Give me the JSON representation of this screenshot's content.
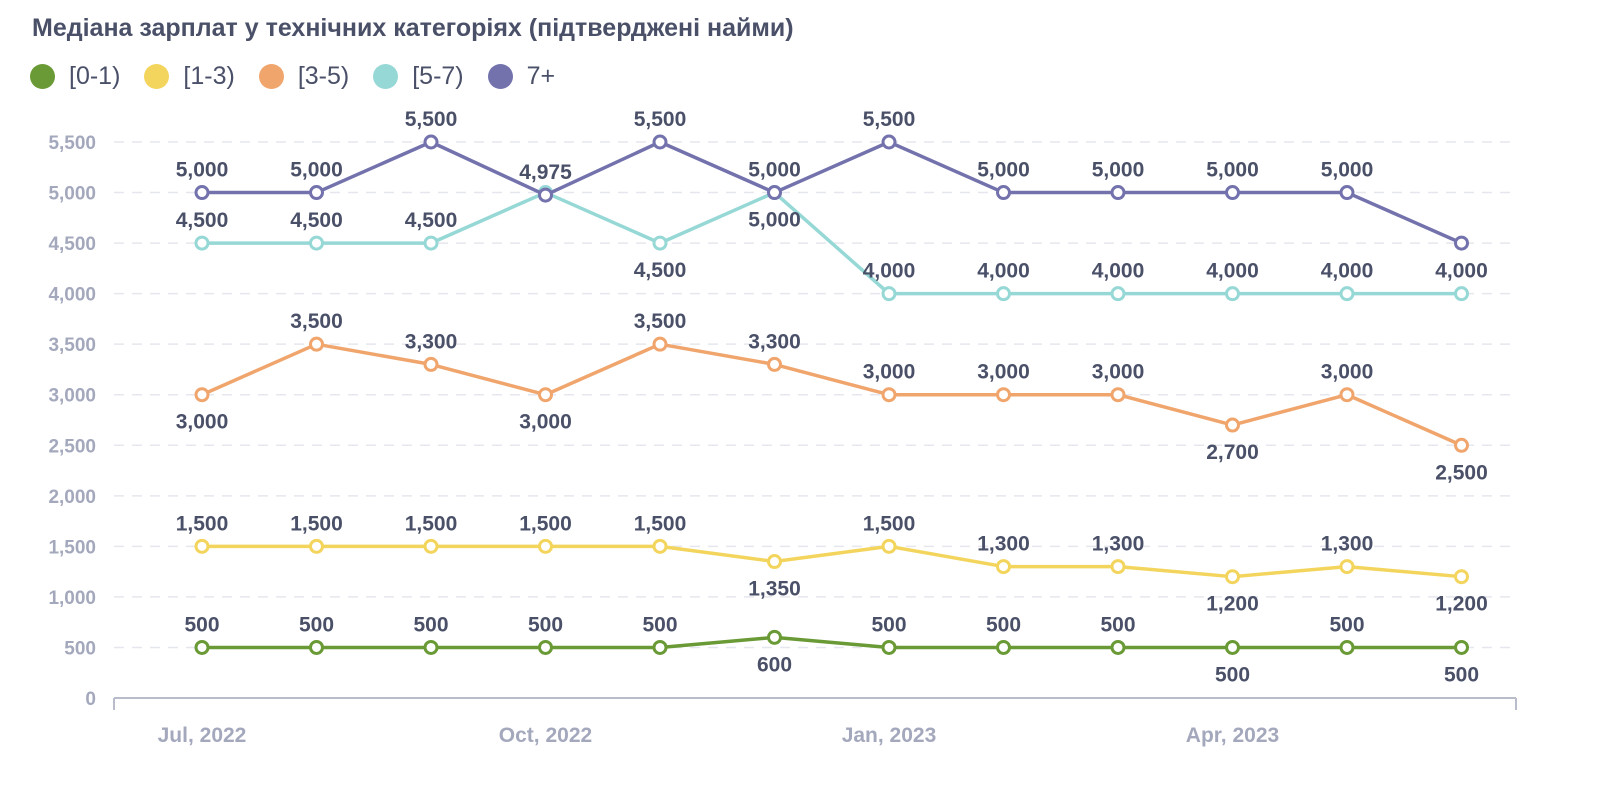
{
  "title": "Медіана зарплат у технічних категоріях (підтверджені найми)",
  "chart_data": {
    "type": "line",
    "title": "Медіана зарплат у технічних категоріях (підтверджені найми)",
    "xlabel": "",
    "ylabel": "",
    "ylim": [
      0,
      5500
    ],
    "y_ticks": [
      "0",
      "500",
      "1,000",
      "1,500",
      "2,000",
      "2,500",
      "3,000",
      "3,500",
      "4,000",
      "4,500",
      "5,000",
      "5,500"
    ],
    "x_tick_labels": [
      "Jul, 2022",
      "Oct, 2022",
      "Jan, 2023",
      "Apr, 2023"
    ],
    "x": [
      "2022-07",
      "2022-08",
      "2022-09",
      "2022-10",
      "2022-11",
      "2022-12",
      "2023-01",
      "2023-02",
      "2023-03",
      "2023-04",
      "2023-05",
      "2023-06"
    ],
    "grid": true,
    "legend_position": "top-left",
    "series": [
      {
        "name": "[0-1)",
        "color": "#6a9a35",
        "values": [
          500,
          500,
          500,
          500,
          500,
          600,
          500,
          500,
          500,
          500,
          500,
          500
        ],
        "labels": [
          "500",
          "500",
          "500",
          "500",
          "500",
          "600",
          "500",
          "500",
          "500",
          "500",
          "500",
          "500"
        ]
      },
      {
        "name": "[1-3)",
        "color": "#f3d55d",
        "values": [
          1500,
          1500,
          1500,
          1500,
          1500,
          1350,
          1500,
          1300,
          1300,
          1200,
          1300,
          1200
        ],
        "labels": [
          "1,500",
          "1,500",
          "1,500",
          "1,500",
          "1,500",
          "1,350",
          "1,500",
          "1,300",
          "1,300",
          "1,200",
          "1,300",
          "1,200"
        ]
      },
      {
        "name": "[3-5)",
        "color": "#f0a56d",
        "values": [
          3000,
          3500,
          3300,
          3000,
          3500,
          3300,
          3000,
          3000,
          3000,
          2700,
          3000,
          2500
        ],
        "labels": [
          "3,000",
          "3,500",
          "3,300",
          "3,000",
          "3,500",
          "3,300",
          "3,000",
          "3,000",
          "3,000",
          "2,700",
          "3,000",
          "2,500"
        ]
      },
      {
        "name": "[5-7)",
        "color": "#96d8d5",
        "values": [
          4500,
          4500,
          4500,
          5000,
          4500,
          5000,
          4000,
          4000,
          4000,
          4000,
          4000,
          4000
        ],
        "labels": [
          "4,500",
          "4,500",
          "4,500",
          "",
          "4,500",
          "5,000",
          "4,000",
          "4,000",
          "4,000",
          "4,000",
          "4,000",
          "4,000"
        ]
      },
      {
        "name": "7+",
        "color": "#7372ad",
        "values": [
          5000,
          5000,
          5500,
          4975,
          5500,
          5000,
          5500,
          5000,
          5000,
          5000,
          5000,
          4500
        ],
        "labels": [
          "5,000",
          "5,000",
          "5,500",
          "4,975",
          "5,500",
          "5,000",
          "5,500",
          "5,000",
          "5,000",
          "5,000",
          "5,000",
          ""
        ]
      }
    ]
  }
}
